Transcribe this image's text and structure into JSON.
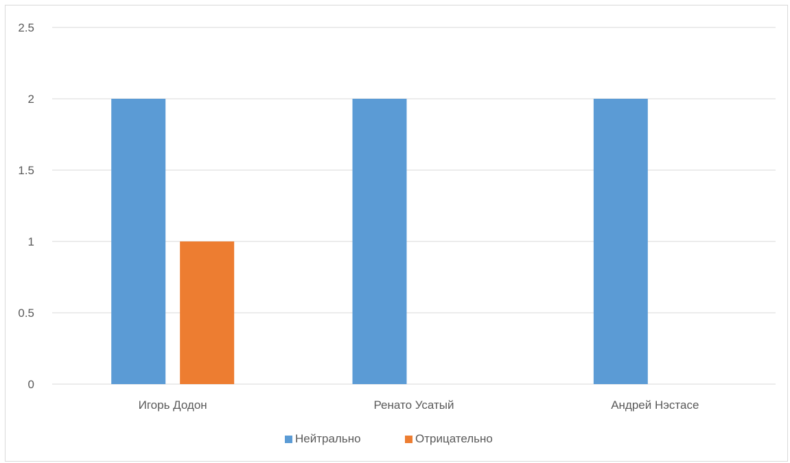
{
  "chart_data": {
    "type": "bar",
    "categories": [
      "Игорь Додон",
      "Ренато Усатый",
      "Андрей Нэстасе"
    ],
    "series": [
      {
        "name": "Нейтрально",
        "color": "#5b9bd5",
        "values": [
          2,
          2,
          2
        ]
      },
      {
        "name": "Отрицательно",
        "color": "#ed7d31",
        "values": [
          1,
          0,
          0
        ]
      }
    ],
    "ylim": [
      0,
      2.5
    ],
    "yticks": [
      "0",
      "0.5",
      "1",
      "1.5",
      "2",
      "2.5"
    ],
    "title": "",
    "xlabel": "",
    "ylabel": "",
    "grid": true,
    "legend_position": "bottom",
    "colors": {
      "gridline": "#d9d9d9",
      "text": "#595959"
    }
  }
}
